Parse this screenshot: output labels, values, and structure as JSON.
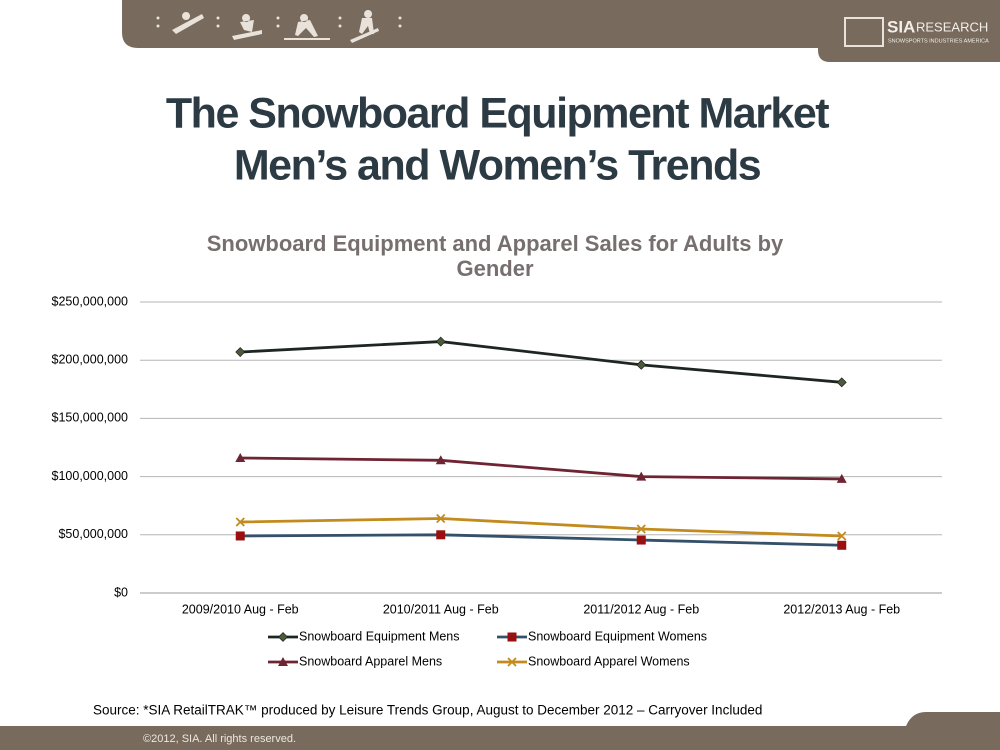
{
  "slide": {
    "title_lines": [
      "The Snowboard Equipment Market",
      "Men’s and Women’s Trends"
    ],
    "logo": {
      "name": "SIA",
      "suffix": "RESEARCH",
      "tagline": "SNOWSPORTS INDUSTRIES AMERICA"
    },
    "source": "Source:  *SIA RetailTRAK™ produced by Leisure Trends Group, August to December 2012 – Carryover Included",
    "footer": "©2012, SIA. All rights reserved."
  },
  "chart_data": {
    "type": "line",
    "title_lines": [
      "Snowboard Equipment and Apparel Sales for Adults by",
      "Gender"
    ],
    "categories": [
      "2009/2010 Aug - Feb",
      "2010/2011 Aug - Feb",
      "2011/2012 Aug - Feb",
      "2012/2013 Aug - Feb"
    ],
    "series": [
      {
        "name": "Snowboard Equipment Mens",
        "color": "#1e2622",
        "marker": "diamond",
        "marker_color": "#4a5a3a",
        "values": [
          207000000,
          216000000,
          196000000,
          181000000
        ]
      },
      {
        "name": "Snowboard Equipment Womens",
        "color": "#34506a",
        "marker": "square",
        "marker_color": "#9a1010",
        "values": [
          49000000,
          50000000,
          45500000,
          41000000
        ]
      },
      {
        "name": "Snowboard Apparel Mens",
        "color": "#6e2432",
        "marker": "triangle",
        "marker_color": "#6e2432",
        "values": [
          116000000,
          114000000,
          100000000,
          98000000
        ]
      },
      {
        "name": "Snowboard Apparel Womens",
        "color": "#c38b1e",
        "marker": "x",
        "marker_color": "#c38b1e",
        "values": [
          61000000,
          64000000,
          55000000,
          49000000
        ]
      }
    ],
    "ylim": [
      0,
      250000000
    ],
    "yticks": [
      {
        "value": 0,
        "label": "$0"
      },
      {
        "value": 50000000,
        "label": "$50,000,000"
      },
      {
        "value": 100000000,
        "label": "$100,000,000"
      },
      {
        "value": 150000000,
        "label": "$150,000,000"
      },
      {
        "value": 200000000,
        "label": "$200,000,000"
      },
      {
        "value": 250000000,
        "label": "$250,000,000"
      }
    ],
    "grid": true,
    "legend": "bottom"
  }
}
